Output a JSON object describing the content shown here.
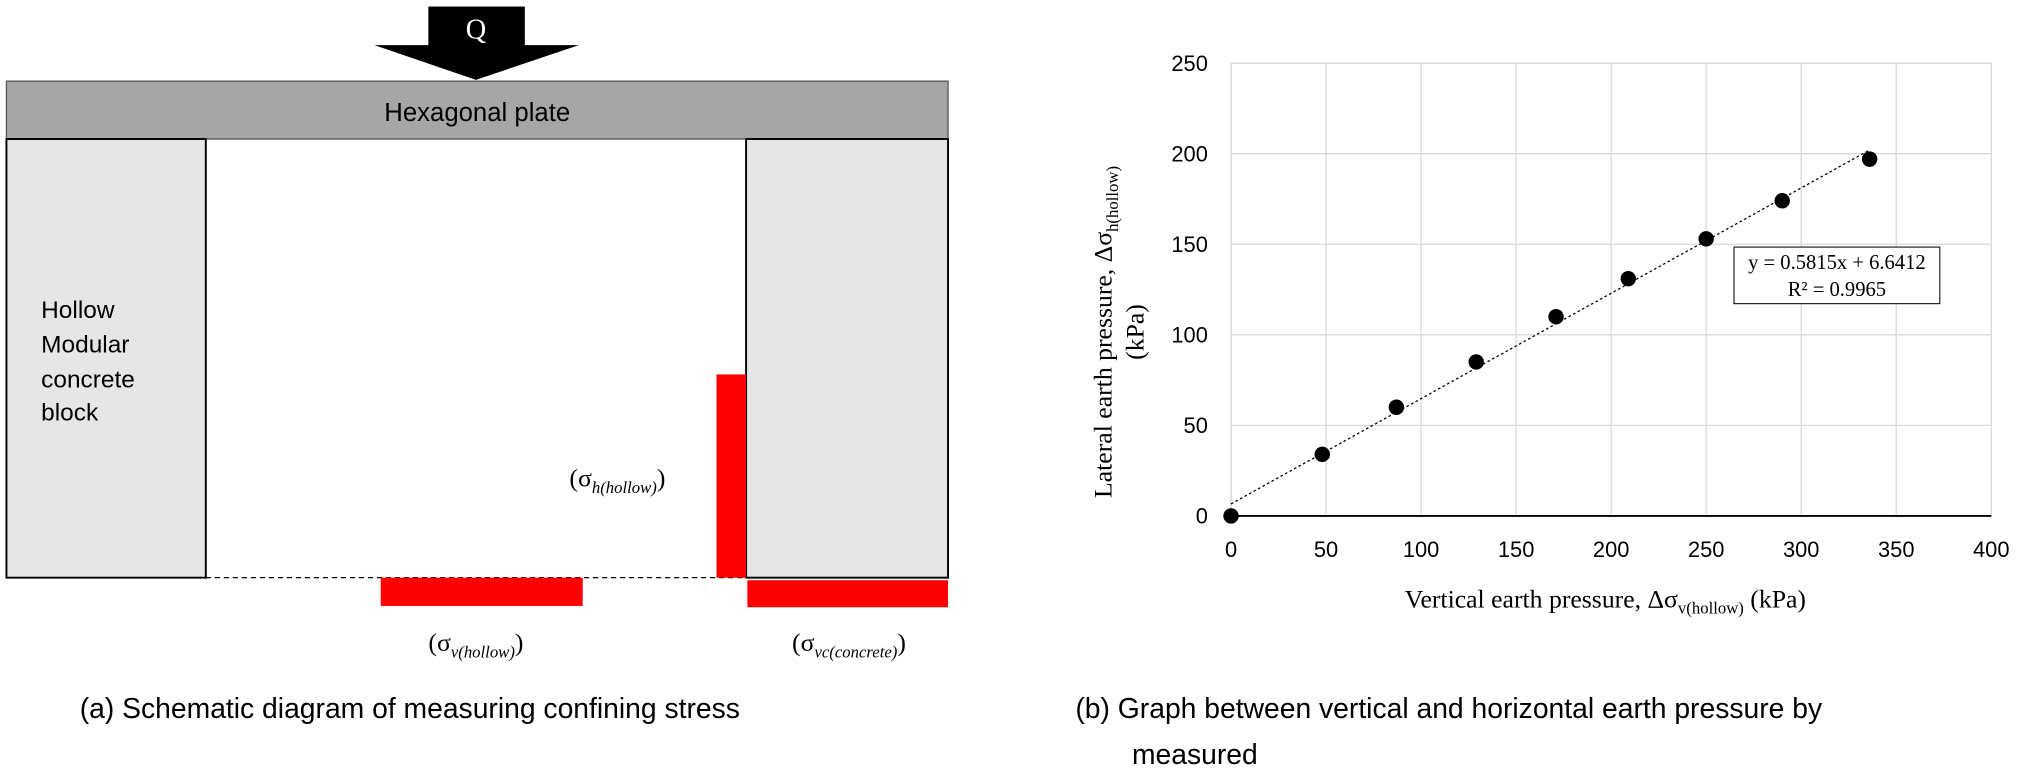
{
  "diagram": {
    "load": "Q",
    "plate": "Hexagonal plate",
    "block_lines": [
      "Hollow",
      "Modular",
      "concrete",
      "block"
    ],
    "stress_h": {
      "pre": "(σ",
      "sub": "h(hollow)",
      "post": ")"
    },
    "stress_v": {
      "pre": "(σ",
      "sub": "v(hollow)",
      "post": ")"
    },
    "stress_vc": {
      "pre": "(σ",
      "sub": "vc(concrete)",
      "post": ")"
    },
    "caption": "(a) Schematic diagram of measuring confining stress"
  },
  "chart_data": {
    "type": "scatter",
    "x": [
      0,
      48,
      87,
      129,
      171,
      209,
      250,
      290,
      336
    ],
    "values": [
      0,
      34,
      60,
      85,
      110,
      131,
      153,
      174,
      197
    ],
    "color": "#000000",
    "xlim": [
      0,
      400
    ],
    "xticks": [
      0,
      50,
      100,
      150,
      200,
      250,
      300,
      350,
      400
    ],
    "ylim": [
      0,
      250
    ],
    "yticks": [
      0,
      50,
      100,
      150,
      200,
      250
    ],
    "grid": true,
    "x_label": {
      "text": "Vertical earth pressure, Δσ",
      "sub": "v(hollow)",
      "unit": " (kPa)"
    },
    "y_label": {
      "text": "Lateral earth pressure, Δσ",
      "sub": "h(hollow)",
      "unit": "(kPa)"
    },
    "trendline": {
      "slope": 0.5815,
      "intercept": 6.6412,
      "equation": "y = 0.5815x + 6.6412",
      "r2": "R² = 0.9965"
    },
    "caption_lines": [
      "(b) Graph between vertical and horizontal earth pressure by",
      "measured"
    ]
  }
}
